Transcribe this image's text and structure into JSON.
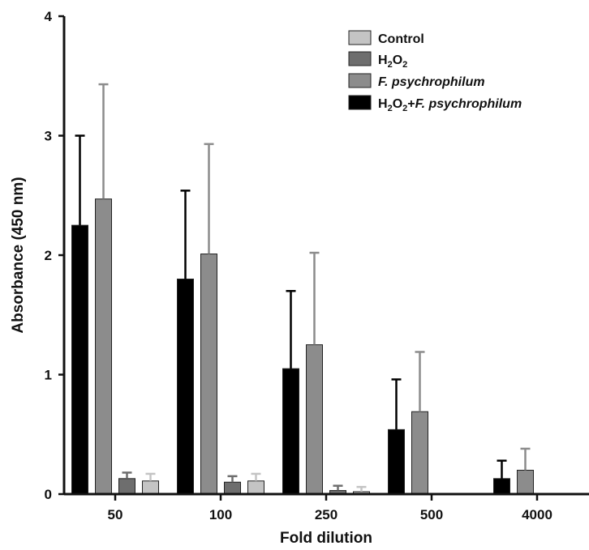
{
  "chart_data": {
    "type": "bar",
    "xlabel": "Fold dilution",
    "ylabel": "Absorbance (450 nm)",
    "ylim": [
      0,
      4
    ],
    "yticks": [
      "0",
      "1",
      "2",
      "3",
      "4"
    ],
    "categories": [
      "50",
      "100",
      "250",
      "500",
      "4000"
    ],
    "grid": false,
    "legend_position": "top-right",
    "series": [
      {
        "name": "H2O2+F. psychrophilum",
        "color": "#000000",
        "values": [
          2.25,
          1.8,
          1.05,
          0.54,
          0.13
        ],
        "errors": [
          0.75,
          0.74,
          0.65,
          0.42,
          0.15
        ]
      },
      {
        "name": "F. psychrophilum",
        "color": "#8c8c8c",
        "values": [
          2.47,
          2.01,
          1.25,
          0.69,
          0.2
        ],
        "errors": [
          0.96,
          0.92,
          0.77,
          0.5,
          0.18
        ]
      },
      {
        "name": "H2O2",
        "color": "#6e6e6e",
        "values": [
          0.13,
          0.1,
          0.03,
          null,
          null
        ],
        "errors": [
          0.05,
          0.05,
          0.04,
          null,
          null
        ]
      },
      {
        "name": "Control",
        "color": "#c4c4c4",
        "values": [
          0.11,
          0.11,
          0.02,
          null,
          null
        ],
        "errors": [
          0.06,
          0.06,
          0.04,
          null,
          null
        ]
      }
    ]
  }
}
